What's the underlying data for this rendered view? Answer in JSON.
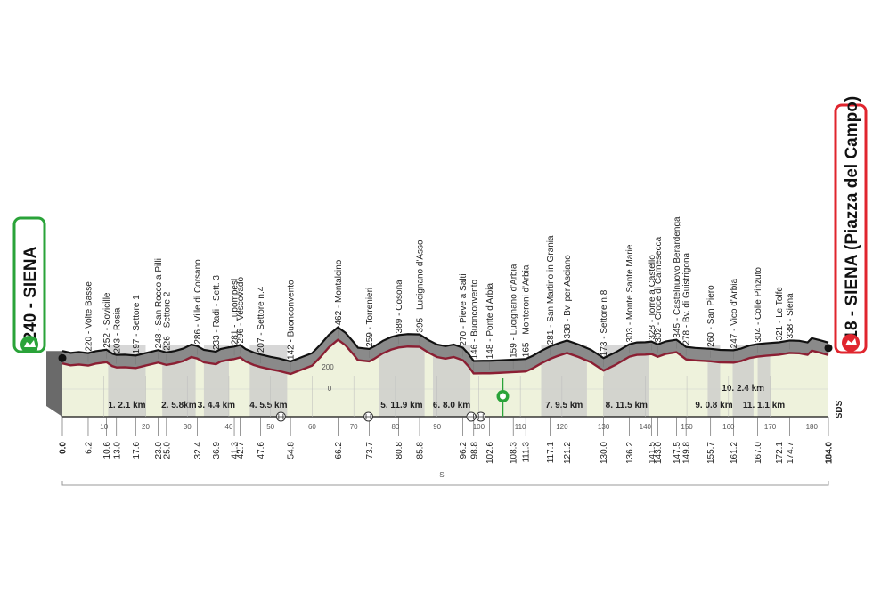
{
  "chart_data": {
    "type": "area",
    "title": "",
    "start": {
      "altitude": 240,
      "name": "SIENA",
      "label": "240 - SIENA",
      "color": "#2aa339"
    },
    "finish": {
      "altitude": 318,
      "name": "SIENA (Piazza del Campo)",
      "label": "318 - SIENA (Piazza del Campo)",
      "color": "#e0252e"
    },
    "total_km": "184.0",
    "bottom_label": "SI",
    "sds_label": "SDS",
    "axis_labels": [
      "0",
      "200"
    ],
    "xlim": [
      0,
      184
    ],
    "x_ticks": [
      10,
      20,
      30,
      40,
      50,
      60,
      70,
      80,
      90,
      100,
      110,
      120,
      130,
      140,
      150,
      160,
      170,
      180
    ],
    "waypoints": [
      {
        "km": 0.0,
        "km_label": "0.0",
        "label": "",
        "bold": true
      },
      {
        "km": 6.2,
        "km_label": "6.2",
        "label": "220 - Volte Basse"
      },
      {
        "km": 10.6,
        "km_label": "10.6",
        "label": "252 - Sovicille"
      },
      {
        "km": 13.0,
        "km_label": "13.0",
        "label": "203 - Rosia"
      },
      {
        "km": 17.6,
        "km_label": "17.6",
        "label": "197 - Settore 1"
      },
      {
        "km": 23.0,
        "km_label": "23.0",
        "label": "248 - San Rocco a Pilli"
      },
      {
        "km": 25.0,
        "km_label": "25.0",
        "label": "226 - Settore 2"
      },
      {
        "km": 32.4,
        "km_label": "32.4",
        "label": "286 - Ville di Corsano"
      },
      {
        "km": 36.9,
        "km_label": "36.9",
        "label": "233 - Radi - Sett. 3"
      },
      {
        "km": 41.3,
        "km_label": "41.3",
        "label": "281 - Lupompesi"
      },
      {
        "km": 42.7,
        "km_label": "42.7",
        "label": "296 - Vescovado"
      },
      {
        "km": 47.6,
        "km_label": "47.6",
        "label": "207 - Settore n.4"
      },
      {
        "km": 54.8,
        "km_label": "54.8",
        "label": "142 - Buonconvento"
      },
      {
        "km": 66.2,
        "km_label": "66.2",
        "label": "462 - Montalcino"
      },
      {
        "km": 73.7,
        "km_label": "73.7",
        "label": "259 - Torrenieri"
      },
      {
        "km": 80.8,
        "km_label": "80.8",
        "label": "389 - Cosona"
      },
      {
        "km": 85.8,
        "km_label": "85.8",
        "label": "395 - Lucignano d'Asso"
      },
      {
        "km": 96.2,
        "km_label": "96.2",
        "label": "270 - Pieve a Salti"
      },
      {
        "km": 98.8,
        "km_label": "98.8",
        "label": "146 - Buonconvento"
      },
      {
        "km": 102.6,
        "km_label": "102.6",
        "label": "148 - Ponte d'Arbia"
      },
      {
        "km": 108.3,
        "km_label": "108.3",
        "label": "159 - Lucignano d'Arbia"
      },
      {
        "km": 111.3,
        "km_label": "111.3",
        "label": "165 - Monteroni d'Arbia"
      },
      {
        "km": 117.1,
        "km_label": "117.1",
        "label": "281 - San Martino in Grania"
      },
      {
        "km": 121.2,
        "km_label": "121.2",
        "label": "338 - Bv. per Asciano"
      },
      {
        "km": 130.0,
        "km_label": "130.0",
        "label": "173 - Settore n.8"
      },
      {
        "km": 136.2,
        "km_label": "136.2",
        "label": "303 - Monte Sante Marie"
      },
      {
        "km": 141.5,
        "km_label": "141.5",
        "label": "328 - Torre a Castello"
      },
      {
        "km": 143.0,
        "km_label": "143.0",
        "label": "302 - Croce di Carnesecca"
      },
      {
        "km": 147.5,
        "km_label": "147.5",
        "label": "345 - Castelnuovo Berardenga"
      },
      {
        "km": 149.8,
        "km_label": "149.8",
        "label": "278 - Bv. di Guistrigona"
      },
      {
        "km": 155.7,
        "km_label": "155.7",
        "label": "260 - San Piero"
      },
      {
        "km": 161.2,
        "km_label": "161.2",
        "label": "247 - Vico d'Arbia"
      },
      {
        "km": 167.0,
        "km_label": "167.0",
        "label": "304 - Colle Pinzuto"
      },
      {
        "km": 172.1,
        "km_label": "172.1",
        "label": "321 - Le Tolfe"
      },
      {
        "km": 174.7,
        "km_label": "174.7",
        "label": "338 - Siena"
      },
      {
        "km": 184.0,
        "km_label": "184.0",
        "label": "",
        "bold": true
      }
    ],
    "sectors": [
      {
        "label": "1. 2.1 km",
        "start": 11,
        "end": 20,
        "row": 0
      },
      {
        "label": "2. 5.8km",
        "start": 24,
        "end": 32,
        "row": 0
      },
      {
        "label": "3. 4.4 km",
        "start": 34,
        "end": 40,
        "row": 0
      },
      {
        "label": "4. 5.5 km",
        "start": 45,
        "end": 54,
        "row": 0
      },
      {
        "label": "5. 11.9 km",
        "start": 76,
        "end": 87,
        "row": 0
      },
      {
        "label": "6. 8.0 km",
        "start": 89,
        "end": 98,
        "row": 0
      },
      {
        "label": "7. 9.5 km",
        "start": 115,
        "end": 126,
        "row": 0
      },
      {
        "label": "8. 11.5 km",
        "start": 130,
        "end": 141,
        "row": 0
      },
      {
        "label": "9. 0.8 km",
        "start": 155,
        "end": 158,
        "row": 0
      },
      {
        "label": "10. 2.4 km",
        "start": 161,
        "end": 166,
        "row": 1
      },
      {
        "label": "11. 1.1 km",
        "start": 167,
        "end": 170,
        "row": 0
      }
    ],
    "profile": [
      [
        0,
        240
      ],
      [
        2,
        222
      ],
      [
        4,
        230
      ],
      [
        6.2,
        220
      ],
      [
        8,
        238
      ],
      [
        10.6,
        252
      ],
      [
        12,
        215
      ],
      [
        13,
        203
      ],
      [
        15,
        205
      ],
      [
        17.6,
        197
      ],
      [
        20,
        220
      ],
      [
        23,
        248
      ],
      [
        25,
        226
      ],
      [
        27,
        240
      ],
      [
        29,
        262
      ],
      [
        31,
        300
      ],
      [
        32.4,
        286
      ],
      [
        34,
        250
      ],
      [
        36.9,
        233
      ],
      [
        38,
        258
      ],
      [
        40,
        274
      ],
      [
        41.3,
        281
      ],
      [
        42.7,
        296
      ],
      [
        44,
        258
      ],
      [
        46,
        225
      ],
      [
        47.6,
        207
      ],
      [
        50,
        185
      ],
      [
        52,
        170
      ],
      [
        54.8,
        142
      ],
      [
        57,
        175
      ],
      [
        60,
        220
      ],
      [
        62,
        300
      ],
      [
        64,
        390
      ],
      [
        66.2,
        462
      ],
      [
        68,
        410
      ],
      [
        70,
        320
      ],
      [
        71,
        270
      ],
      [
        73.7,
        259
      ],
      [
        75,
        285
      ],
      [
        77,
        335
      ],
      [
        79,
        370
      ],
      [
        80.8,
        389
      ],
      [
        83,
        398
      ],
      [
        85.8,
        395
      ],
      [
        88,
        340
      ],
      [
        90,
        300
      ],
      [
        92,
        285
      ],
      [
        94,
        300
      ],
      [
        96.2,
        270
      ],
      [
        97.5,
        215
      ],
      [
        98.8,
        146
      ],
      [
        101,
        148
      ],
      [
        102.6,
        148
      ],
      [
        105,
        152
      ],
      [
        108.3,
        159
      ],
      [
        110,
        162
      ],
      [
        111.3,
        165
      ],
      [
        113,
        195
      ],
      [
        115,
        240
      ],
      [
        117.1,
        281
      ],
      [
        119,
        310
      ],
      [
        121.2,
        338
      ],
      [
        124,
        300
      ],
      [
        127,
        250
      ],
      [
        130,
        173
      ],
      [
        133,
        230
      ],
      [
        136.2,
        303
      ],
      [
        138,
        320
      ],
      [
        140,
        322
      ],
      [
        141.5,
        328
      ],
      [
        143,
        302
      ],
      [
        145,
        330
      ],
      [
        147.5,
        345
      ],
      [
        149.8,
        278
      ],
      [
        152,
        268
      ],
      [
        155.7,
        260
      ],
      [
        158,
        250
      ],
      [
        161.2,
        247
      ],
      [
        163,
        262
      ],
      [
        165,
        290
      ],
      [
        167,
        304
      ],
      [
        169,
        312
      ],
      [
        172.1,
        321
      ],
      [
        174.7,
        338
      ],
      [
        177,
        335
      ],
      [
        179,
        320
      ],
      [
        180,
        360
      ],
      [
        182,
        340
      ],
      [
        184,
        318
      ]
    ]
  }
}
